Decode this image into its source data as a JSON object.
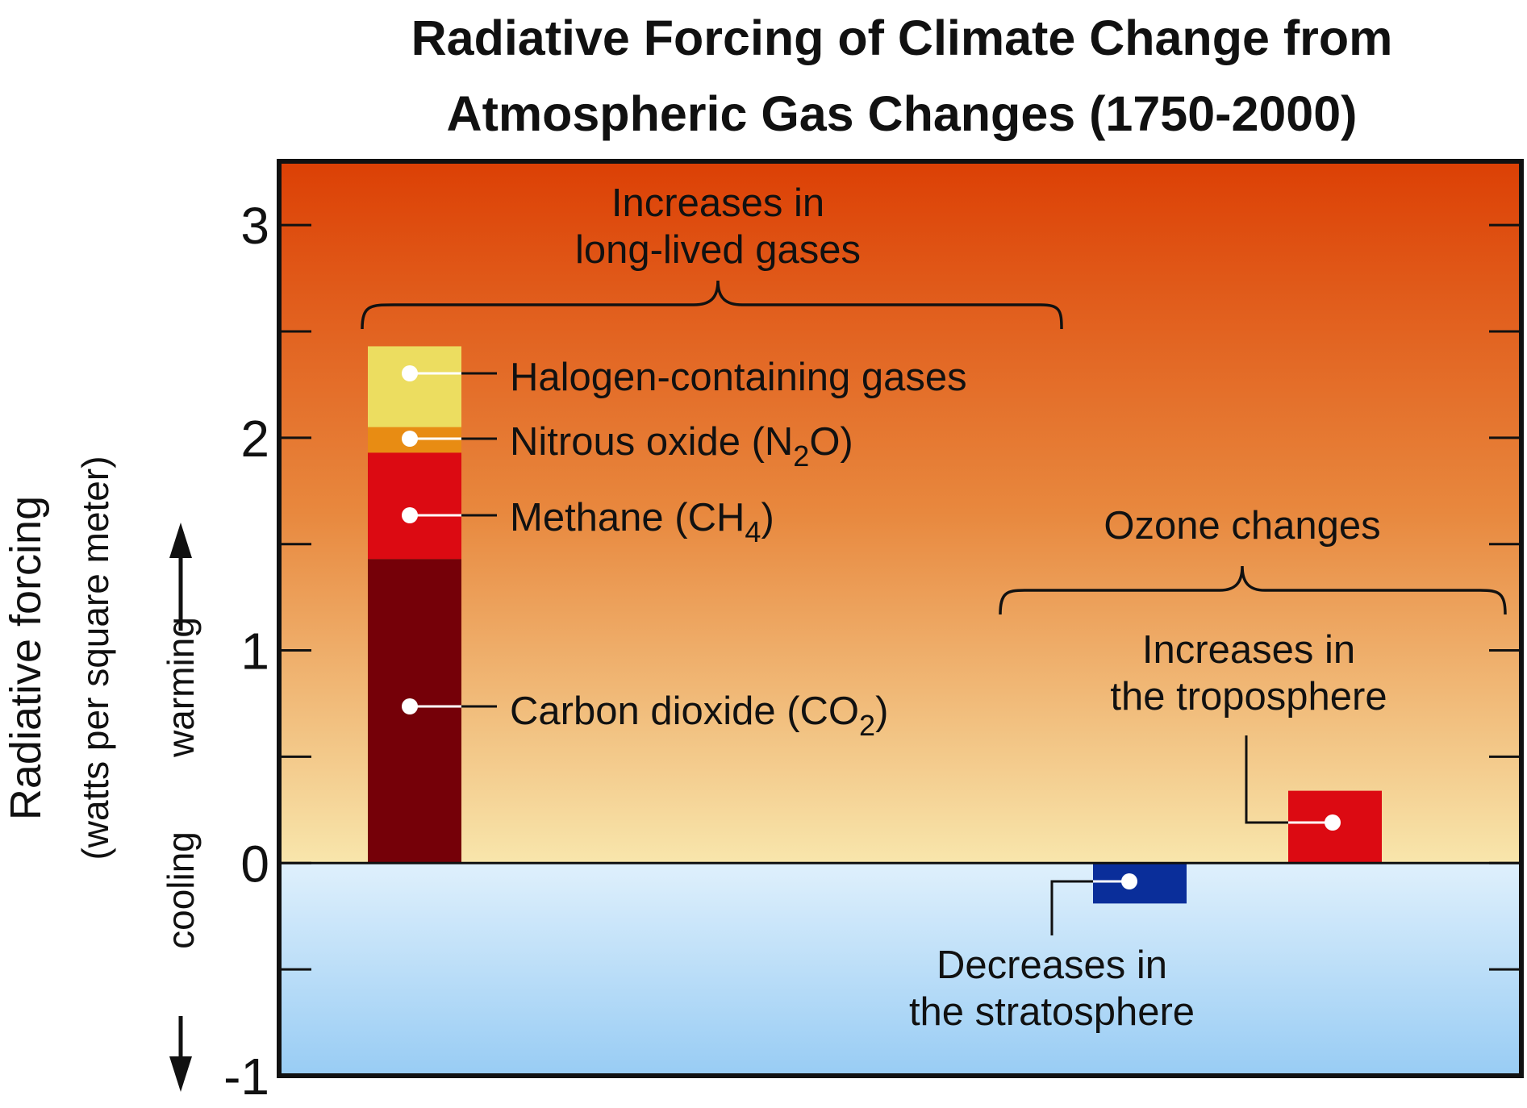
{
  "chart_data": {
    "type": "bar",
    "title": "Radiative Forcing of Climate Change from Atmospheric Gas Changes (1750-2000)",
    "title_lines": [
      "Radiative Forcing of Climate Change from",
      "Atmospheric Gas Changes (1750-2000)"
    ],
    "ylabel": "Radiative forcing",
    "ylabel_sub": "(watts per square meter)",
    "direction_labels": {
      "warming": "warming",
      "cooling": "cooling"
    },
    "ylim": [
      -1,
      3.3
    ],
    "yticks": [
      -1,
      0,
      1,
      2,
      3
    ],
    "ytick_labels": [
      "-1",
      "0",
      "1",
      "2",
      "3"
    ],
    "grid": false,
    "stacked_bar": {
      "group_label_lines": [
        "Increases in",
        "long-lived gases"
      ],
      "segments": [
        {
          "name": "Carbon dioxide (CO₂)",
          "label_main": "Carbon dioxide (CO",
          "label_sub": "2",
          "label_end": ")",
          "value": 1.43,
          "color": "#750008"
        },
        {
          "name": "Methane (CH₄)",
          "label_main": "Methane (CH",
          "label_sub": "4",
          "label_end": ")",
          "value": 0.5,
          "color": "#dc0a12"
        },
        {
          "name": "Nitrous oxide (N₂O)",
          "label_main": "Nitrous oxide (N",
          "label_sub": "2",
          "label_end": "O)",
          "value": 0.12,
          "color": "#e88c13"
        },
        {
          "name": "Halogen-containing gases",
          "label_main": "Halogen-containing gases",
          "label_sub": "",
          "label_end": "",
          "value": 0.38,
          "color": "#ecdd60"
        }
      ]
    },
    "ozone": {
      "group_label": "Ozone changes",
      "bars": [
        {
          "name": "Decreases in the stratosphere",
          "label_lines": [
            "Decreases in",
            "the stratosphere"
          ],
          "value": -0.19,
          "color": "#0a2e9a"
        },
        {
          "name": "Increases in the troposphere",
          "label_lines": [
            "Increases in",
            "the troposphere"
          ],
          "value": 0.34,
          "color": "#dc0a12"
        }
      ]
    }
  }
}
